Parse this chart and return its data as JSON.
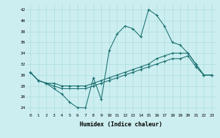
{
  "xlabel": "Humidex (Indice chaleur)",
  "bg_color": "#cceef0",
  "line_color": "#1a7070",
  "grid_color": "#aadddd",
  "xlim": [
    -0.5,
    23.5
  ],
  "ylim": [
    23.0,
    43.0
  ],
  "yticks": [
    24,
    26,
    28,
    30,
    32,
    34,
    36,
    38,
    40,
    42
  ],
  "xticks": [
    0,
    1,
    2,
    3,
    4,
    5,
    6,
    7,
    8,
    9,
    10,
    11,
    12,
    13,
    14,
    15,
    16,
    17,
    18,
    19,
    20,
    21,
    22,
    23
  ],
  "line1_x": [
    0,
    1,
    2,
    3,
    4,
    5,
    6,
    7,
    8,
    9,
    10,
    11,
    12,
    13,
    14,
    15,
    16,
    17,
    18,
    19,
    20,
    21,
    22,
    23
  ],
  "line1_y": [
    30.5,
    29.0,
    28.5,
    27.5,
    26.5,
    25.0,
    24.0,
    24.0,
    29.5,
    25.5,
    34.5,
    37.5,
    39.0,
    38.5,
    37.0,
    42.0,
    41.0,
    39.0,
    36.0,
    35.5,
    34.0,
    32.0,
    30.0,
    30.0
  ],
  "line2_x": [
    0,
    1,
    2,
    3,
    4,
    5,
    6,
    7,
    8,
    9,
    10,
    11,
    12,
    13,
    14,
    15,
    16,
    17,
    18,
    19,
    20,
    21,
    22,
    23
  ],
  "line2_y": [
    30.5,
    29.0,
    28.5,
    28.5,
    28.0,
    28.0,
    28.0,
    28.0,
    28.5,
    29.0,
    29.5,
    30.0,
    30.5,
    31.0,
    31.5,
    32.0,
    33.0,
    33.5,
    34.0,
    34.0,
    34.0,
    32.0,
    30.0,
    30.0
  ],
  "line3_x": [
    0,
    1,
    2,
    3,
    4,
    5,
    6,
    7,
    8,
    9,
    10,
    11,
    12,
    13,
    14,
    15,
    16,
    17,
    18,
    19,
    20,
    21,
    22,
    23
  ],
  "line3_y": [
    30.5,
    29.0,
    28.5,
    28.0,
    27.5,
    27.5,
    27.5,
    27.5,
    28.0,
    28.5,
    29.0,
    29.5,
    30.0,
    30.5,
    31.0,
    31.5,
    32.0,
    32.5,
    33.0,
    33.0,
    33.5,
    31.5,
    30.0,
    30.0
  ]
}
